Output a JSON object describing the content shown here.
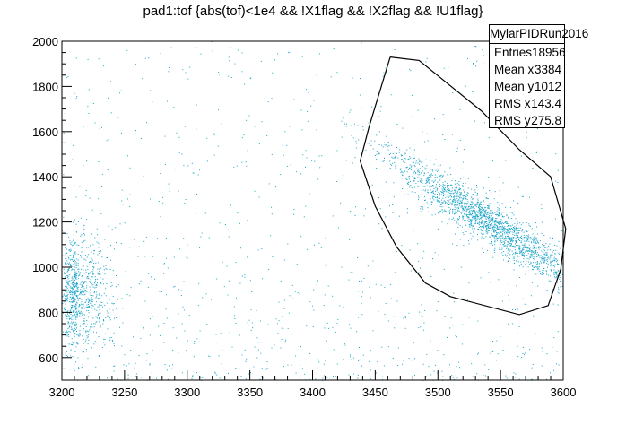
{
  "title": "pad1:tof {abs(tof)<1e4 && !X1flag && !X2flag && !U1flag}",
  "stats": {
    "name": "MylarPIDRun2016",
    "rows": [
      {
        "label": "Entries",
        "value": "18956"
      },
      {
        "label": "Mean x",
        "value": "3384"
      },
      {
        "label": "Mean y",
        "value": "1012"
      },
      {
        "label": "RMS x",
        "value": "143.4"
      },
      {
        "label": "RMS y",
        "value": "275.8"
      }
    ]
  },
  "chart_data": {
    "type": "scatter",
    "title": "pad1:tof {abs(tof)<1e4 && !X1flag && !X2flag && !U1flag}",
    "xlabel": "",
    "ylabel": "",
    "xlim": [
      3200,
      3600
    ],
    "ylim": [
      500,
      2000
    ],
    "x_ticks": [
      3200,
      3250,
      3300,
      3350,
      3400,
      3450,
      3500,
      3550,
      3600
    ],
    "y_ticks": [
      600,
      800,
      1000,
      1200,
      1400,
      1600,
      1800,
      2000
    ],
    "point_color": "#1aa3c8",
    "clusters": [
      {
        "name": "",
        "center": [
          3540,
          1200
        ],
        "spread": [
          38,
          150
        ],
        "count": 2000
      },
      {
        "name": "",
        "center": [
          3212,
          880
        ],
        "spread": [
          11,
          120
        ],
        "count": 900
      }
    ],
    "cut_contour": {
      "x": [
        3462,
        3485,
        3535,
        3565,
        3590,
        3602,
        3598,
        3588,
        3565,
        3510,
        3490,
        3467,
        3450,
        3438,
        3445,
        3462
      ],
      "y": [
        1930,
        1915,
        1690,
        1520,
        1400,
        1170,
        990,
        830,
        790,
        870,
        930,
        1090,
        1270,
        1470,
        1620,
        1930
      ]
    },
    "grid": false,
    "legend": "top-right"
  }
}
